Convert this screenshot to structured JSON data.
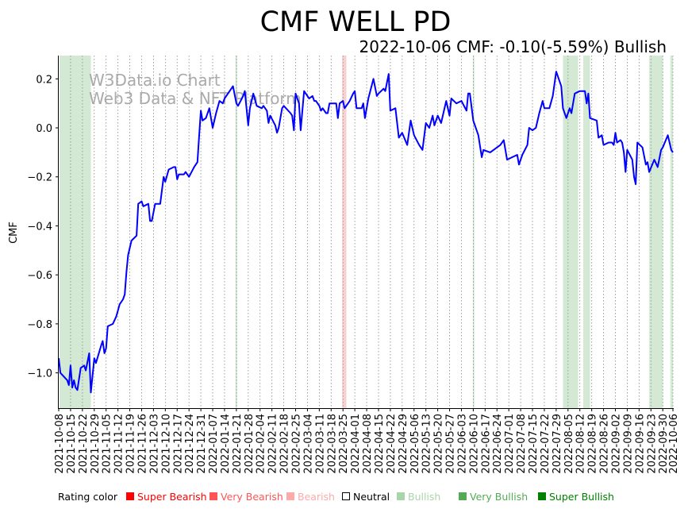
{
  "chart_data": {
    "type": "line",
    "title": "CMF WELL PD",
    "subtitle": "2022-10-06 CMF: -0.10(-5.59%) Bullish",
    "ylabel": "CMF",
    "xlabel": "",
    "watermark": [
      "W3Data.io Chart",
      "Web3 Data & NFT Platform"
    ],
    "start_date": "2021-10-08",
    "x_unit": "days since start_date",
    "xlim": [
      0,
      363
    ],
    "ylim": [
      -1.144,
      0.295
    ],
    "grid": "vertical dotted at weekly ticks",
    "line_color": "#0000ff",
    "y_ticks": [
      0.2,
      0.0,
      -0.2,
      -0.4,
      -0.6,
      -0.8,
      -1.0
    ],
    "y_tick_labels": [
      "0.2",
      "0.0",
      "−0.2",
      "−0.4",
      "−0.6",
      "−0.8",
      "−1.0"
    ],
    "x_tick_labels": [
      "2021-10-08",
      "2021-10-15",
      "2021-10-22",
      "2021-10-29",
      "2021-11-05",
      "2021-11-12",
      "2021-11-19",
      "2021-11-26",
      "2021-12-03",
      "2021-12-10",
      "2021-12-17",
      "2021-12-24",
      "2021-12-31",
      "2022-01-07",
      "2022-01-14",
      "2022-01-21",
      "2022-01-28",
      "2022-02-04",
      "2022-02-11",
      "2022-02-18",
      "2022-02-25",
      "2022-03-04",
      "2022-03-11",
      "2022-03-18",
      "2022-03-25",
      "2022-04-01",
      "2022-04-08",
      "2022-04-15",
      "2022-04-22",
      "2022-04-29",
      "2022-05-06",
      "2022-05-13",
      "2022-05-20",
      "2022-05-27",
      "2022-06-03",
      "2022-06-10",
      "2022-06-17",
      "2022-06-24",
      "2022-07-01",
      "2022-07-08",
      "2022-07-15",
      "2022-07-22",
      "2022-07-29",
      "2022-08-05",
      "2022-08-12",
      "2022-08-19",
      "2022-08-26",
      "2022-09-02",
      "2022-09-09",
      "2022-09-16",
      "2022-09-23",
      "2022-09-30",
      "2022-10-06"
    ],
    "series": [
      {
        "name": "CMF",
        "points": [
          [
            0,
            -0.94
          ],
          [
            1,
            -1.0
          ],
          [
            5,
            -1.03
          ],
          [
            6,
            -1.05
          ],
          [
            7,
            -0.97
          ],
          [
            8,
            -1.06
          ],
          [
            9,
            -1.03
          ],
          [
            10,
            -1.06
          ],
          [
            11,
            -1.07
          ],
          [
            13,
            -0.98
          ],
          [
            15,
            -0.97
          ],
          [
            16,
            -0.99
          ],
          [
            18,
            -0.92
          ],
          [
            19,
            -1.08
          ],
          [
            21,
            -0.94
          ],
          [
            22,
            -0.96
          ],
          [
            25,
            -0.89
          ],
          [
            26,
            -0.87
          ],
          [
            27,
            -0.92
          ],
          [
            28,
            -0.9
          ],
          [
            29,
            -0.81
          ],
          [
            32,
            -0.8
          ],
          [
            34,
            -0.77
          ],
          [
            36,
            -0.72
          ],
          [
            38,
            -0.7
          ],
          [
            39,
            -0.68
          ],
          [
            40,
            -0.59
          ],
          [
            41,
            -0.52
          ],
          [
            43,
            -0.46
          ],
          [
            46,
            -0.44
          ],
          [
            47,
            -0.31
          ],
          [
            49,
            -0.3
          ],
          [
            50,
            -0.32
          ],
          [
            53,
            -0.31
          ],
          [
            54,
            -0.38
          ],
          [
            55,
            -0.38
          ],
          [
            57,
            -0.31
          ],
          [
            60,
            -0.31
          ],
          [
            62,
            -0.2
          ],
          [
            63,
            -0.22
          ],
          [
            65,
            -0.17
          ],
          [
            68,
            -0.16
          ],
          [
            69,
            -0.16
          ],
          [
            70,
            -0.21
          ],
          [
            71,
            -0.19
          ],
          [
            74,
            -0.19
          ],
          [
            75,
            -0.18
          ],
          [
            77,
            -0.2
          ],
          [
            80,
            -0.16
          ],
          [
            82,
            -0.14
          ],
          [
            83,
            -0.03
          ],
          [
            84,
            0.07
          ],
          [
            85,
            0.03
          ],
          [
            87,
            0.04
          ],
          [
            89,
            0.08
          ],
          [
            90,
            0.04
          ],
          [
            91,
            0.0
          ],
          [
            93,
            0.06
          ],
          [
            95,
            0.11
          ],
          [
            97,
            0.1
          ],
          [
            98,
            0.12
          ],
          [
            101,
            0.15
          ],
          [
            103,
            0.17
          ],
          [
            105,
            0.1
          ],
          [
            106,
            0.09
          ],
          [
            109,
            0.13
          ],
          [
            110,
            0.15
          ],
          [
            112,
            0.01
          ],
          [
            113,
            0.08
          ],
          [
            115,
            0.14
          ],
          [
            117,
            0.09
          ],
          [
            120,
            0.08
          ],
          [
            121,
            0.09
          ],
          [
            123,
            0.07
          ],
          [
            124,
            0.02
          ],
          [
            125,
            0.05
          ],
          [
            128,
            0.01
          ],
          [
            129,
            -0.02
          ],
          [
            130,
            0.0
          ],
          [
            132,
            0.08
          ],
          [
            133,
            0.09
          ],
          [
            137,
            0.06
          ],
          [
            138,
            0.05
          ],
          [
            139,
            -0.01
          ],
          [
            140,
            0.14
          ],
          [
            142,
            0.1
          ],
          [
            143,
            -0.01
          ],
          [
            145,
            0.15
          ],
          [
            147,
            0.13
          ],
          [
            148,
            0.12
          ],
          [
            150,
            0.13
          ],
          [
            151,
            0.11
          ],
          [
            152,
            0.11
          ],
          [
            154,
            0.09
          ],
          [
            155,
            0.07
          ],
          [
            156,
            0.08
          ],
          [
            158,
            0.06
          ],
          [
            159,
            0.06
          ],
          [
            160,
            0.1
          ],
          [
            164,
            0.1
          ],
          [
            165,
            0.04
          ],
          [
            166,
            0.1
          ],
          [
            168,
            0.11
          ],
          [
            169,
            0.08
          ],
          [
            171,
            0.1
          ],
          [
            172,
            0.11
          ],
          [
            174,
            0.14
          ],
          [
            175,
            0.15
          ],
          [
            176,
            0.08
          ],
          [
            177,
            0.08
          ],
          [
            179,
            0.08
          ],
          [
            180,
            0.1
          ],
          [
            181,
            0.04
          ],
          [
            183,
            0.12
          ],
          [
            186,
            0.2
          ],
          [
            188,
            0.13
          ],
          [
            189,
            0.14
          ],
          [
            192,
            0.16
          ],
          [
            193,
            0.15
          ],
          [
            195,
            0.22
          ],
          [
            196,
            0.07
          ],
          [
            199,
            0.08
          ],
          [
            201,
            -0.04
          ],
          [
            203,
            -0.02
          ],
          [
            206,
            -0.07
          ],
          [
            208,
            0.03
          ],
          [
            210,
            -0.03
          ],
          [
            213,
            -0.07
          ],
          [
            215,
            -0.09
          ],
          [
            217,
            0.02
          ],
          [
            219,
            0.0
          ],
          [
            221,
            0.05
          ],
          [
            222,
            0.01
          ],
          [
            224,
            0.05
          ],
          [
            226,
            0.02
          ],
          [
            229,
            0.11
          ],
          [
            231,
            0.05
          ],
          [
            232,
            0.12
          ],
          [
            235,
            0.1
          ],
          [
            238,
            0.11
          ],
          [
            241,
            0.07
          ],
          [
            242,
            0.14
          ],
          [
            243,
            0.14
          ],
          [
            245,
            0.03
          ],
          [
            248,
            -0.03
          ],
          [
            250,
            -0.12
          ],
          [
            251,
            -0.09
          ],
          [
            255,
            -0.1
          ],
          [
            257,
            -0.09
          ],
          [
            261,
            -0.07
          ],
          [
            263,
            -0.05
          ],
          [
            265,
            -0.13
          ],
          [
            268,
            -0.12
          ],
          [
            271,
            -0.11
          ],
          [
            272,
            -0.15
          ],
          [
            274,
            -0.11
          ],
          [
            277,
            -0.07
          ],
          [
            278,
            0.0
          ],
          [
            280,
            -0.01
          ],
          [
            282,
            0.0
          ],
          [
            284,
            0.06
          ],
          [
            286,
            0.11
          ],
          [
            287,
            0.08
          ],
          [
            290,
            0.08
          ],
          [
            292,
            0.13
          ],
          [
            294,
            0.23
          ],
          [
            297,
            0.17
          ],
          [
            298,
            0.08
          ],
          [
            300,
            0.04
          ],
          [
            302,
            0.08
          ],
          [
            303,
            0.06
          ],
          [
            305,
            0.14
          ],
          [
            308,
            0.15
          ],
          [
            311,
            0.15
          ],
          [
            312,
            0.1
          ],
          [
            313,
            0.14
          ],
          [
            314,
            0.04
          ],
          [
            318,
            0.03
          ],
          [
            319,
            -0.04
          ],
          [
            321,
            -0.03
          ],
          [
            322,
            -0.07
          ],
          [
            325,
            -0.06
          ],
          [
            327,
            -0.06
          ],
          [
            328,
            -0.07
          ],
          [
            329,
            -0.02
          ],
          [
            330,
            -0.06
          ],
          [
            332,
            -0.05
          ],
          [
            333,
            -0.06
          ],
          [
            334,
            -0.1
          ],
          [
            335,
            -0.18
          ],
          [
            336,
            -0.09
          ],
          [
            339,
            -0.13
          ],
          [
            340,
            -0.2
          ],
          [
            341,
            -0.23
          ],
          [
            342,
            -0.06
          ],
          [
            345,
            -0.08
          ],
          [
            347,
            -0.15
          ],
          [
            348,
            -0.14
          ],
          [
            349,
            -0.18
          ],
          [
            352,
            -0.13
          ],
          [
            354,
            -0.16
          ],
          [
            356,
            -0.09
          ],
          [
            357,
            -0.08
          ],
          [
            360,
            -0.03
          ],
          [
            362,
            -0.09
          ],
          [
            363,
            -0.1
          ]
        ]
      }
    ],
    "rating_bands": [
      {
        "rating": "Very Bullish",
        "range_days": [
          0.5,
          19
        ]
      },
      {
        "rating": "Very Bullish",
        "range_days": [
          104.5,
          105.5
        ]
      },
      {
        "rating": "Bearish",
        "range_days": [
          167.5,
          170
        ]
      },
      {
        "rating": "Very Bullish",
        "range_days": [
          244.8,
          245.6
        ]
      },
      {
        "rating": "Very Bullish",
        "range_days": [
          298,
          307
        ]
      },
      {
        "rating": "Very Bullish",
        "range_days": [
          310,
          314
        ]
      },
      {
        "rating": "Very Bullish",
        "range_days": [
          349,
          357
        ]
      },
      {
        "rating": "Very Bullish",
        "range_days": [
          361.5,
          363
        ]
      }
    ],
    "band_colors": {
      "Very Bullish": "#d3e9d3",
      "Bearish": "#f9d0d0"
    },
    "legend": {
      "title": "Rating color",
      "placement": "bottom",
      "items": [
        {
          "label": "Super Bearish",
          "color": "#ff0000"
        },
        {
          "label": "Very Bearish",
          "color": "#ff5555"
        },
        {
          "label": "Bearish",
          "color": "#ffaaaa"
        },
        {
          "label": "Neutral",
          "color": "#000000",
          "hollow": true
        },
        {
          "label": "Bullish",
          "color": "#aad5aa"
        },
        {
          "label": "Very Bullish",
          "color": "#55aa55"
        },
        {
          "label": "Super Bullish",
          "color": "#008000"
        }
      ]
    }
  }
}
